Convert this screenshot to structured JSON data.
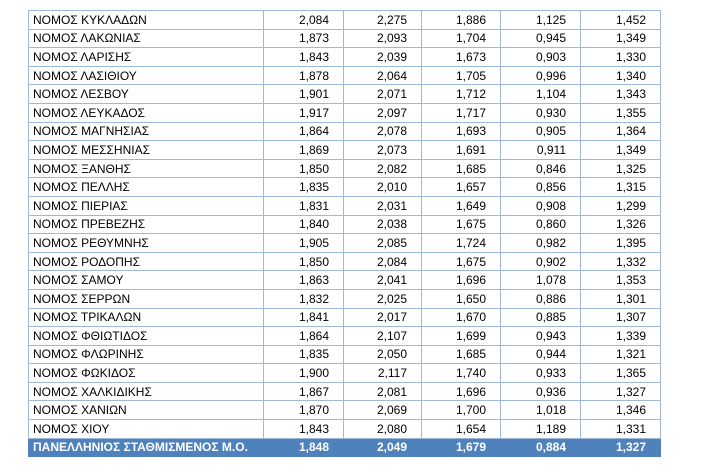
{
  "table": {
    "rows": [
      [
        "ΝΟΜΟΣ ΚΥΚΛΑΔΩΝ",
        "2,084",
        "2,275",
        "1,886",
        "1,125",
        "1,452"
      ],
      [
        "ΝΟΜΟΣ ΛΑΚΩΝΙΑΣ",
        "1,873",
        "2,093",
        "1,704",
        "0,945",
        "1,349"
      ],
      [
        "ΝΟΜΟΣ ΛΑΡΙΣΗΣ",
        "1,843",
        "2,039",
        "1,673",
        "0,903",
        "1,330"
      ],
      [
        "ΝΟΜΟΣ ΛΑΣΙΘΙΟΥ",
        "1,878",
        "2,064",
        "1,705",
        "0,996",
        "1,340"
      ],
      [
        "ΝΟΜΟΣ ΛΕΣΒΟΥ",
        "1,901",
        "2,071",
        "1,712",
        "1,104",
        "1,343"
      ],
      [
        "ΝΟΜΟΣ ΛΕΥΚΑΔΟΣ",
        "1,917",
        "2,097",
        "1,717",
        "0,930",
        "1,355"
      ],
      [
        "ΝΟΜΟΣ ΜΑΓΝΗΣΙΑΣ",
        "1,864",
        "2,078",
        "1,693",
        "0,905",
        "1,364"
      ],
      [
        "ΝΟΜΟΣ ΜΕΣΣΗΝΙΑΣ",
        "1,869",
        "2,073",
        "1,691",
        "0,911",
        "1,349"
      ],
      [
        "ΝΟΜΟΣ ΞΑΝΘΗΣ",
        "1,850",
        "2,082",
        "1,685",
        "0,846",
        "1,325"
      ],
      [
        "ΝΟΜΟΣ ΠΕΛΛΗΣ",
        "1,835",
        "2,010",
        "1,657",
        "0,856",
        "1,315"
      ],
      [
        "ΝΟΜΟΣ ΠΙΕΡΙΑΣ",
        "1,831",
        "2,031",
        "1,649",
        "0,908",
        "1,299"
      ],
      [
        "ΝΟΜΟΣ ΠΡΕΒΕΖΗΣ",
        "1,840",
        "2,038",
        "1,675",
        "0,860",
        "1,326"
      ],
      [
        "ΝΟΜΟΣ ΡΕΘΥΜΝΗΣ",
        "1,905",
        "2,085",
        "1,724",
        "0,982",
        "1,395"
      ],
      [
        "ΝΟΜΟΣ ΡΟΔΟΠΗΣ",
        "1,850",
        "2,084",
        "1,675",
        "0,902",
        "1,332"
      ],
      [
        "ΝΟΜΟΣ ΣΑΜΟΥ",
        "1,863",
        "2,041",
        "1,696",
        "1,078",
        "1,353"
      ],
      [
        "ΝΟΜΟΣ ΣΕΡΡΩΝ",
        "1,832",
        "2,025",
        "1,650",
        "0,886",
        "1,301"
      ],
      [
        "ΝΟΜΟΣ ΤΡΙΚΑΛΩΝ",
        "1,841",
        "2,017",
        "1,670",
        "0,885",
        "1,307"
      ],
      [
        "ΝΟΜΟΣ ΦΘΙΩΤΙΔΟΣ",
        "1,864",
        "2,107",
        "1,699",
        "0,943",
        "1,339"
      ],
      [
        "ΝΟΜΟΣ ΦΛΩΡΙΝΗΣ",
        "1,835",
        "2,050",
        "1,685",
        "0,944",
        "1,321"
      ],
      [
        "ΝΟΜΟΣ ΦΩΚΙΔΟΣ",
        "1,900",
        "2,117",
        "1,740",
        "0,933",
        "1,365"
      ],
      [
        "ΝΟΜΟΣ ΧΑΛΚΙΔΙΚΗΣ",
        "1,867",
        "2,081",
        "1,696",
        "0,936",
        "1,327"
      ],
      [
        "ΝΟΜΟΣ ΧΑΝΙΩΝ",
        "1,870",
        "2,069",
        "1,700",
        "1,018",
        "1,346"
      ],
      [
        "ΝΟΜΟΣ ΧΙΟΥ",
        "1,843",
        "2,080",
        "1,654",
        "1,189",
        "1,331"
      ]
    ],
    "footer": [
      "ΠΑΝΕΛΛΗΝΙΟΣ ΣΤΑΘΜΙΣΜΕΝΟΣ Μ.Ο.",
      "1,848",
      "2,049",
      "1,679",
      "0,884",
      "1,327"
    ]
  }
}
